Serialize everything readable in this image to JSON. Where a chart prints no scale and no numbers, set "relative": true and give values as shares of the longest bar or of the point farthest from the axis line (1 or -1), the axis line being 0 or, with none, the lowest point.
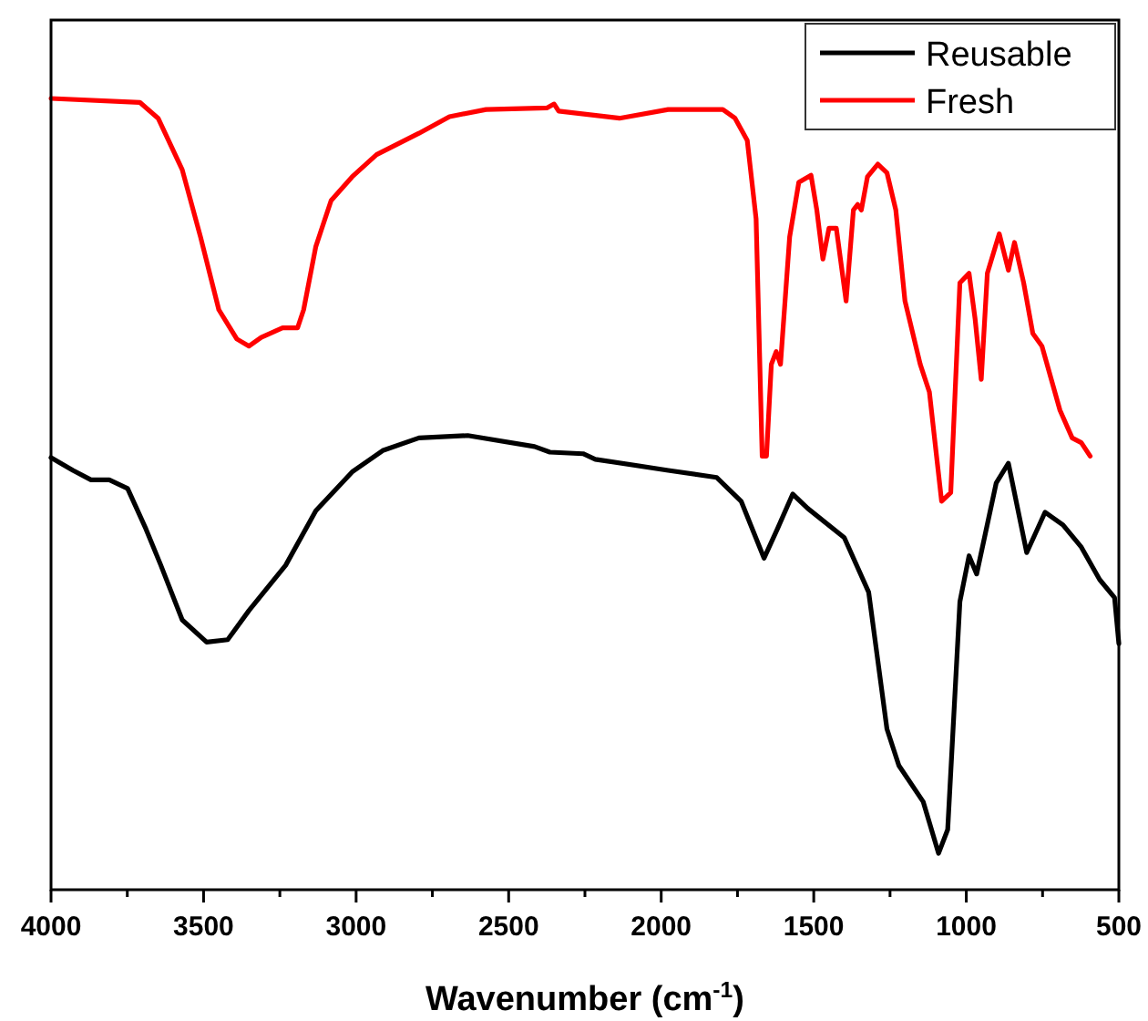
{
  "chart_data": {
    "type": "line",
    "xlabel": "Wavenumber (cm$^{-1}$)",
    "relative": true,
    "xlim": [
      4000,
      500
    ],
    "xticks": [
      4000,
      {
        "value": 3750,
        "label": null
      },
      3500,
      {
        "value": 3250,
        "label": null
      },
      3000,
      {
        "value": 2750,
        "label": null
      },
      2500,
      {
        "value": 2250,
        "label": null
      },
      2000,
      {
        "value": 1750,
        "label": null
      },
      1500,
      {
        "value": 1250,
        "label": null
      },
      1000,
      {
        "value": 750,
        "label": null
      },
      500
    ],
    "legend": "top right",
    "grid": false,
    "marker": "none",
    "line_style": "solid",
    "series": [
      {
        "name": "Reusable",
        "color": "#000000",
        "x": [
          4000,
          3928,
          3869,
          3809,
          3749,
          3689,
          3640,
          3570,
          3490,
          3421,
          3351,
          3231,
          3132,
          3013,
          2913,
          2794,
          2634,
          2415,
          2365,
          2256,
          2216,
          1977,
          1818,
          1738,
          1663,
          1619,
          1569,
          1520,
          1400,
          1320,
          1260,
          1221,
          1141,
          1091,
          1061,
          1021,
          991,
          966,
          902,
          862,
          802,
          742,
          683,
          623,
          563,
          514,
          500
        ],
        "values": [
          0.546,
          0.53,
          0.518,
          0.518,
          0.507,
          0.456,
          0.41,
          0.341,
          0.313,
          0.316,
          0.353,
          0.41,
          0.479,
          0.528,
          0.555,
          0.571,
          0.574,
          0.56,
          0.553,
          0.551,
          0.544,
          0.53,
          0.521,
          0.491,
          0.419,
          0.456,
          0.5,
          0.482,
          0.445,
          0.376,
          0.203,
          0.157,
          0.111,
          0.046,
          0.076,
          0.364,
          0.422,
          0.399,
          0.514,
          0.539,
          0.426,
          0.477,
          0.461,
          0.433,
          0.392,
          0.369,
          0.311
        ]
      },
      {
        "name": "Fresh",
        "color": "#ff0000",
        "x": [
          4000,
          3709,
          3649,
          3570,
          3510,
          3450,
          3391,
          3351,
          3311,
          3241,
          3192,
          3172,
          3132,
          3082,
          3013,
          2933,
          2794,
          2694,
          2574,
          2375,
          2351,
          2336,
          2137,
          1977,
          1798,
          1758,
          1718,
          1689,
          1669,
          1655,
          1639,
          1623,
          1609,
          1579,
          1549,
          1509,
          1490,
          1470,
          1450,
          1426,
          1394,
          1370,
          1356,
          1344,
          1324,
          1290,
          1260,
          1231,
          1201,
          1151,
          1121,
          1081,
          1051,
          1021,
          991,
          971,
          951,
          931,
          892,
          862,
          842,
          812,
          782,
          752,
          693,
          653,
          623,
          594
        ],
        "values": [
          1.0,
          0.995,
          0.975,
          0.91,
          0.825,
          0.733,
          0.696,
          0.687,
          0.698,
          0.71,
          0.71,
          0.733,
          0.813,
          0.871,
          0.901,
          0.929,
          0.956,
          0.977,
          0.986,
          0.988,
          0.993,
          0.984,
          0.975,
          0.986,
          0.986,
          0.975,
          0.947,
          0.848,
          0.548,
          0.548,
          0.664,
          0.68,
          0.664,
          0.825,
          0.894,
          0.903,
          0.859,
          0.797,
          0.836,
          0.836,
          0.744,
          0.859,
          0.866,
          0.859,
          0.901,
          0.917,
          0.906,
          0.859,
          0.744,
          0.664,
          0.629,
          0.491,
          0.502,
          0.767,
          0.779,
          0.721,
          0.645,
          0.779,
          0.829,
          0.783,
          0.818,
          0.767,
          0.703,
          0.687,
          0.606,
          0.571,
          0.565,
          0.548
        ]
      }
    ]
  }
}
